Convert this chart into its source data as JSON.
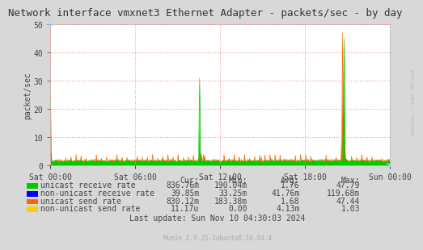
{
  "title": "Network interface vmxnet3 Ethernet Adapter - packets/sec - by day",
  "ylabel": "packet/sec",
  "fig_bg_color": "#d8d8d8",
  "plot_bg_color": "#ffffff",
  "ylim": [
    0,
    50
  ],
  "yticks": [
    0,
    10,
    20,
    30,
    40,
    50
  ],
  "xtick_labels": [
    "Sat 00:00",
    "Sat 06:00",
    "Sat 12:00",
    "Sat 18:00",
    "Sun 00:00"
  ],
  "grid_color": "#ff8888",
  "title_fontsize": 9,
  "axis_fontsize": 7,
  "legend_fontsize": 7,
  "watermark": "RRDTOOL / TOBI OETIKER",
  "munin_text": "Munin 2.0.25-2ubuntu0.16.04.4",
  "last_update": "Last update: Sun Nov 10 04:30:03 2024",
  "legend_entries": [
    {
      "label": "unicast receive rate",
      "color": "#00cc00"
    },
    {
      "label": "non-unicast receive rate",
      "color": "#0000ff"
    },
    {
      "label": "unicast send rate",
      "color": "#ff6600"
    },
    {
      "label": "non-unicast send rate",
      "color": "#ffcc00"
    }
  ],
  "stats_header": [
    "Cur:",
    "Min:",
    "Avg:",
    "Max:"
  ],
  "stats": [
    [
      "836.76m",
      "190.04m",
      "1.76",
      "47.79"
    ],
    [
      "39.85m",
      "33.25m",
      "41.76m",
      "119.68m"
    ],
    [
      "830.12m",
      "183.38m",
      "1.68",
      "47.44"
    ],
    [
      "11.17u",
      "0.00",
      "4.13m",
      "1.03"
    ]
  ],
  "num_points": 600
}
